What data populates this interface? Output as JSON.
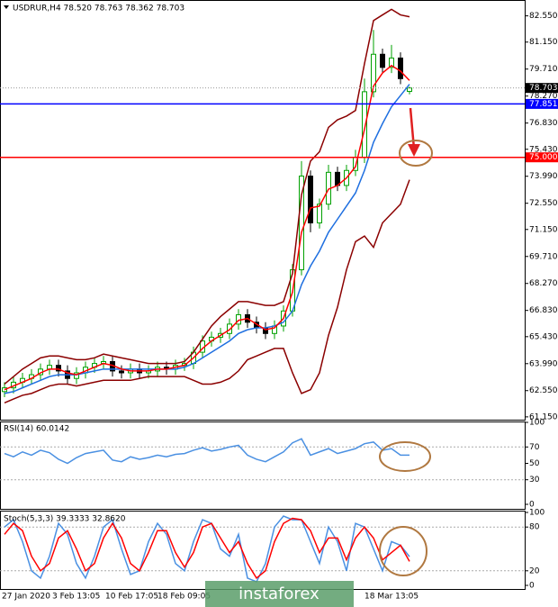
{
  "watermark": "instaforex",
  "chart_data": [
    {
      "type": "candlestick",
      "title": "USDRUR,H4  78.520 78.763 78.362 78.703",
      "ylim": [
        61.0,
        83.3
      ],
      "yticks": [
        {
          "value": 82.55,
          "label": "82.550"
        },
        {
          "value": 81.15,
          "label": "81.150"
        },
        {
          "value": 79.71,
          "label": "79.710"
        },
        {
          "value": 78.27,
          "label": "78.270"
        },
        {
          "value": 76.83,
          "label": "76.830"
        },
        {
          "value": 75.43,
          "label": "75.430"
        },
        {
          "value": 73.99,
          "label": "73.990"
        },
        {
          "value": 72.55,
          "label": "72.550"
        },
        {
          "value": 71.15,
          "label": "71.150"
        },
        {
          "value": 69.71,
          "label": "69.710"
        },
        {
          "value": 68.27,
          "label": "68.270"
        },
        {
          "value": 66.83,
          "label": "66.830"
        },
        {
          "value": 65.43,
          "label": "65.430"
        },
        {
          "value": 63.99,
          "label": "63.990"
        },
        {
          "value": 62.55,
          "label": "62.550"
        },
        {
          "value": 61.15,
          "label": "61.150"
        }
      ],
      "up_color": "#00a000",
      "down_color": "#000000",
      "open": [
        62.5,
        62.7,
        63.0,
        63.2,
        63.4,
        63.7,
        63.9,
        63.6,
        63.2,
        63.5,
        63.8,
        64.0,
        64.1,
        63.6,
        63.5,
        63.7,
        63.5,
        63.6,
        63.8,
        63.7,
        63.9,
        64.0,
        64.6,
        65.2,
        65.4,
        65.6,
        66.1,
        66.6,
        66.2,
        65.9,
        65.6,
        66.0,
        66.8,
        69.0,
        74.0,
        71.5,
        72.5,
        74.2,
        73.5,
        74.3,
        75.0,
        78.5,
        80.5,
        79.8,
        80.3,
        78.52
      ],
      "high": [
        63.0,
        63.3,
        63.5,
        63.7,
        64.0,
        64.2,
        64.2,
        63.9,
        63.8,
        64.1,
        64.3,
        64.4,
        64.4,
        63.9,
        64.0,
        64.0,
        63.9,
        64.1,
        64.1,
        64.2,
        64.3,
        64.9,
        65.5,
        65.7,
        65.9,
        66.4,
        66.9,
        66.9,
        66.5,
        66.2,
        66.3,
        67.1,
        69.3,
        74.8,
        74.3,
        72.8,
        74.6,
        74.5,
        74.6,
        75.4,
        79.2,
        81.8,
        80.8,
        81.0,
        80.6,
        78.763
      ],
      "low": [
        62.2,
        62.4,
        62.7,
        62.9,
        63.1,
        63.4,
        63.3,
        62.9,
        62.9,
        63.2,
        63.5,
        63.7,
        63.3,
        63.2,
        63.2,
        63.2,
        63.2,
        63.3,
        63.4,
        63.4,
        63.6,
        63.7,
        64.3,
        64.9,
        65.1,
        65.3,
        65.8,
        65.9,
        65.6,
        65.3,
        65.3,
        65.7,
        66.5,
        68.7,
        71.0,
        71.2,
        72.2,
        73.2,
        73.2,
        74.0,
        74.7,
        78.2,
        79.5,
        79.5,
        78.9,
        78.362
      ],
      "close": [
        62.7,
        63.0,
        63.2,
        63.4,
        63.7,
        63.9,
        63.6,
        63.2,
        63.5,
        63.8,
        64.0,
        64.1,
        63.6,
        63.5,
        63.7,
        63.5,
        63.6,
        63.8,
        63.7,
        63.9,
        64.0,
        64.6,
        65.2,
        65.4,
        65.6,
        66.1,
        66.6,
        66.2,
        65.9,
        65.6,
        66.0,
        66.8,
        69.0,
        74.0,
        71.5,
        72.5,
        74.2,
        73.5,
        74.3,
        75.0,
        78.5,
        80.5,
        79.8,
        80.3,
        79.2,
        78.703
      ],
      "series": [
        {
          "color": "#8b0000",
          "values": [
            62.9,
            63.3,
            63.7,
            64.0,
            64.3,
            64.4,
            64.4,
            64.3,
            64.2,
            64.2,
            64.3,
            64.5,
            64.4,
            64.3,
            64.2,
            64.1,
            64.0,
            64.0,
            64.0,
            64.0,
            64.1,
            64.6,
            65.3,
            66.0,
            66.5,
            66.9,
            67.3,
            67.3,
            67.2,
            67.1,
            67.1,
            67.3,
            68.8,
            73.0,
            74.8,
            75.3,
            76.6,
            77.0,
            77.2,
            77.5,
            80.0,
            82.3,
            82.6,
            82.9,
            82.6,
            82.5
          ]
        },
        {
          "color": "#8b0000",
          "values": [
            61.9,
            62.1,
            62.3,
            62.4,
            62.6,
            62.8,
            62.9,
            62.9,
            62.8,
            62.9,
            63.0,
            63.1,
            63.1,
            63.1,
            63.1,
            63.2,
            63.3,
            63.3,
            63.3,
            63.3,
            63.3,
            63.1,
            62.9,
            62.9,
            63.0,
            63.2,
            63.6,
            64.2,
            64.4,
            64.6,
            64.8,
            64.8,
            63.5,
            62.4,
            62.6,
            63.5,
            65.5,
            67.0,
            69.0,
            70.5,
            70.8,
            70.2,
            71.5,
            72.0,
            72.5,
            73.8
          ]
        },
        {
          "color": "#1e6fe0",
          "values": [
            62.4,
            62.5,
            62.7,
            62.9,
            63.1,
            63.3,
            63.4,
            63.4,
            63.4,
            63.5,
            63.6,
            63.7,
            63.7,
            63.7,
            63.7,
            63.7,
            63.7,
            63.7,
            63.7,
            63.7,
            63.8,
            64.0,
            64.3,
            64.6,
            64.9,
            65.2,
            65.6,
            65.8,
            65.9,
            65.9,
            66.0,
            66.2,
            66.8,
            68.2,
            69.2,
            70.0,
            71.0,
            71.7,
            72.4,
            73.1,
            74.3,
            75.8,
            76.8,
            77.7,
            78.3,
            78.9
          ]
        },
        {
          "color": "#ff0000",
          "values": [
            62.6,
            62.8,
            63.0,
            63.2,
            63.5,
            63.7,
            63.7,
            63.5,
            63.4,
            63.6,
            63.8,
            64.0,
            63.9,
            63.7,
            63.6,
            63.6,
            63.6,
            63.7,
            63.7,
            63.8,
            63.9,
            64.3,
            64.8,
            65.2,
            65.5,
            65.8,
            66.3,
            66.4,
            66.1,
            65.8,
            65.9,
            66.4,
            67.8,
            71.0,
            72.3,
            72.4,
            73.3,
            73.5,
            73.9,
            74.5,
            76.5,
            78.8,
            79.5,
            79.9,
            79.6,
            79.1
          ]
        }
      ],
      "levels": [
        {
          "value": 77.851,
          "label": "77.851",
          "color": "#0000ff"
        },
        {
          "value": 75.0,
          "label": "75.000",
          "color": "#ff0000"
        }
      ],
      "price_label": {
        "value": 78.703,
        "label": "78.703"
      }
    },
    {
      "type": "line",
      "title": "RSI(14) 60.0142",
      "ylim": [
        0,
        100
      ],
      "yticks": [
        0,
        30,
        50,
        70,
        100
      ],
      "levels": [
        30,
        70
      ],
      "series": [
        {
          "color": "#4a90e2",
          "values": [
            62,
            58,
            64,
            60,
            66,
            63,
            55,
            50,
            57,
            62,
            64,
            66,
            54,
            52,
            58,
            55,
            57,
            60,
            58,
            61,
            62,
            66,
            69,
            65,
            67,
            70,
            72,
            60,
            55,
            52,
            58,
            64,
            75,
            80,
            60,
            64,
            68,
            62,
            65,
            68,
            74,
            76,
            66,
            68,
            60,
            60
          ]
        }
      ]
    },
    {
      "type": "line",
      "title": "Stoch(5,3,3) 39.3333 32.8620",
      "ylim": [
        0,
        100
      ],
      "yticks": [
        0,
        20,
        80,
        100
      ],
      "levels": [
        20,
        80
      ],
      "series": [
        {
          "color": "#4a90e2",
          "values": [
            80,
            90,
            60,
            20,
            10,
            40,
            85,
            70,
            30,
            10,
            40,
            80,
            90,
            50,
            15,
            20,
            60,
            85,
            70,
            30,
            20,
            60,
            90,
            85,
            50,
            40,
            70,
            10,
            5,
            30,
            80,
            95,
            90,
            90,
            60,
            30,
            80,
            60,
            20,
            85,
            80,
            50,
            20,
            60,
            55,
            39.3333
          ]
        },
        {
          "color": "#ff0000",
          "values": [
            70,
            85,
            75,
            40,
            20,
            30,
            65,
            75,
            50,
            20,
            30,
            65,
            85,
            65,
            30,
            20,
            45,
            75,
            75,
            45,
            25,
            45,
            80,
            85,
            65,
            45,
            60,
            30,
            10,
            20,
            60,
            85,
            92,
            90,
            75,
            45,
            65,
            65,
            35,
            65,
            80,
            65,
            35,
            45,
            55,
            32.862
          ]
        }
      ],
      "x_labels": [
        "27 Jan 2020",
        "3 Feb 13:05",
        "10 Feb 17:05",
        "18 Feb 09:05",
        "18 Mar 13:05"
      ]
    }
  ]
}
